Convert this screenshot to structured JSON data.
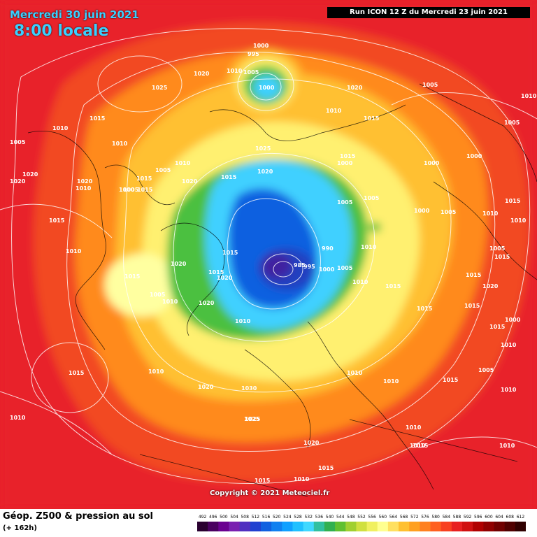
{
  "header": {
    "date": "Mercredi 30 juin 2021",
    "time": "8:00 locale",
    "run": "Run ICON 12 Z du Mercredi 23 juin 2021"
  },
  "copyright": "Copyright © 2021 Meteociel.fr",
  "legend": {
    "title": "Géop. Z500 & pression au sol",
    "subtitle": "(+ 162h)",
    "scale_values": [
      "492",
      "496",
      "500",
      "504",
      "508",
      "512",
      "516",
      "520",
      "524",
      "528",
      "532",
      "536",
      "540",
      "544",
      "548",
      "552",
      "556",
      "560",
      "564",
      "568",
      "572",
      "576",
      "580",
      "584",
      "588",
      "592",
      "596",
      "600",
      "604",
      "608",
      "612"
    ],
    "scale_colors": [
      "#2a0030",
      "#4a0060",
      "#6a0090",
      "#7a20b0",
      "#5030c0",
      "#2040d0",
      "#1060e0",
      "#1080f0",
      "#10a0ff",
      "#20c0ff",
      "#40d8ff",
      "#30c0a0",
      "#30b050",
      "#60c030",
      "#a0d030",
      "#d0e040",
      "#f0f060",
      "#ffff90",
      "#ffe060",
      "#ffc030",
      "#ffa020",
      "#ff8020",
      "#ff6020",
      "#f84020",
      "#e82020",
      "#d01010",
      "#b00000",
      "#900000",
      "#700000",
      "#500000",
      "#300000"
    ],
    "colors": {
      "outer_red": "#e8202a",
      "red_orange": "#f24a20",
      "orange": "#ff8a1a",
      "yellow_orange": "#ffc030",
      "yellow": "#fff070",
      "pale_yellow": "#ffffa0",
      "green": "#4cc040",
      "cyan": "#40d0ff",
      "blue": "#1060e0",
      "deep_blue": "#2040c0",
      "purple": "#4020a0"
    }
  },
  "isobars": [
    {
      "label": "1000"
    },
    {
      "label": "995"
    },
    {
      "label": "1000"
    },
    {
      "label": "1005"
    },
    {
      "label": "1010"
    },
    {
      "label": "1020"
    },
    {
      "label": "1025"
    },
    {
      "label": "1015"
    },
    {
      "label": "1010"
    },
    {
      "label": "1005"
    },
    {
      "label": "1020"
    },
    {
      "label": "1010"
    },
    {
      "label": "1020"
    },
    {
      "label": "1005"
    },
    {
      "label": "1015"
    },
    {
      "label": "1015"
    },
    {
      "label": "1000"
    },
    {
      "label": "1000"
    },
    {
      "label": "1005"
    },
    {
      "label": "1005"
    },
    {
      "label": "1010"
    },
    {
      "label": "1000"
    },
    {
      "label": "1005"
    },
    {
      "label": "1005"
    },
    {
      "label": "1010"
    },
    {
      "label": "1015"
    },
    {
      "label": "1020"
    },
    {
      "label": "1015"
    },
    {
      "label": "1020"
    },
    {
      "label": "1025"
    },
    {
      "label": "1015"
    },
    {
      "label": "1020"
    },
    {
      "label": "1010"
    },
    {
      "label": "1005"
    },
    {
      "label": "1015"
    },
    {
      "label": "1015"
    },
    {
      "label": "1015"
    },
    {
      "label": "1020"
    },
    {
      "label": "1010"
    },
    {
      "label": "1005"
    },
    {
      "label": "1000"
    },
    {
      "label": "990"
    },
    {
      "label": "985"
    },
    {
      "label": "995"
    },
    {
      "label": "1000"
    },
    {
      "label": "1005"
    },
    {
      "label": "1010"
    },
    {
      "label": "1010"
    },
    {
      "label": "1015"
    },
    {
      "label": "1015"
    },
    {
      "label": "1020"
    },
    {
      "label": "1010"
    },
    {
      "label": "1015"
    },
    {
      "label": "1005"
    },
    {
      "label": "1000"
    },
    {
      "label": "1020"
    },
    {
      "label": "1020"
    },
    {
      "label": "1010"
    },
    {
      "label": "1010"
    },
    {
      "label": "1025"
    },
    {
      "label": "1010"
    },
    {
      "label": "1020"
    },
    {
      "label": "1030"
    },
    {
      "label": "1025"
    },
    {
      "label": "1010"
    },
    {
      "label": "1015"
    },
    {
      "label": "1010"
    },
    {
      "label": "1010"
    },
    {
      "label": "1015"
    },
    {
      "label": "1020"
    },
    {
      "label": "1015"
    },
    {
      "label": "1015"
    },
    {
      "label": "1010"
    },
    {
      "label": "1015"
    },
    {
      "label": "1010"
    },
    {
      "label": "1015"
    },
    {
      "label": "1010"
    },
    {
      "label": "1010"
    },
    {
      "label": "1005"
    },
    {
      "label": "1010"
    },
    {
      "label": "1000"
    },
    {
      "label": "1015"
    },
    {
      "label": "1005"
    },
    {
      "label": "1015"
    },
    {
      "label": "1010"
    },
    {
      "label": "1010"
    },
    {
      "label": "1020"
    },
    {
      "label": "1015"
    },
    {
      "label": "1010"
    },
    {
      "label": "1015"
    }
  ]
}
